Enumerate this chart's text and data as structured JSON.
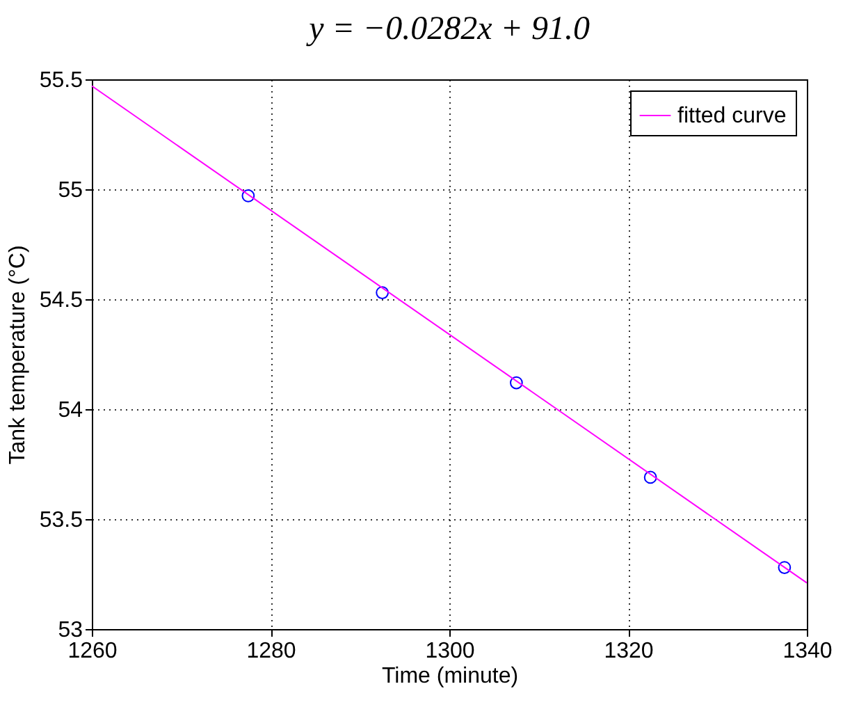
{
  "chart_data": {
    "type": "scatter",
    "title": "y = −0.0282x + 91.0",
    "xlabel": "Time (minute)",
    "ylabel": "Tank temperature (°C)",
    "xlim": [
      1260,
      1340
    ],
    "ylim": [
      53,
      55.5
    ],
    "xticks": [
      1260,
      1280,
      1300,
      1320,
      1340
    ],
    "yticks": [
      53,
      53.5,
      54,
      54.5,
      55,
      55.5
    ],
    "grid": true,
    "legend": "top right",
    "line_style": "solid",
    "series": [
      {
        "color": "#0000ff",
        "marker": "circle",
        "x": [
          1277.5,
          1292.5,
          1307.5,
          1322.5,
          1337.5
        ],
        "values": [
          54.97,
          54.53,
          54.12,
          53.69,
          53.28
        ]
      },
      {
        "type": "line",
        "name": "fitted curve",
        "color": "#ff00ff",
        "marker": "none",
        "x": [
          1260,
          1340
        ],
        "values": [
          55.47,
          53.21
        ]
      }
    ]
  }
}
